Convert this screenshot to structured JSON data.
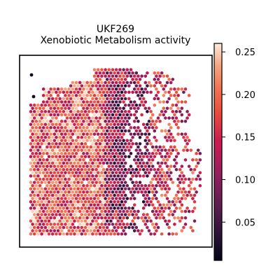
{
  "chart_data": {
    "type": "scatter",
    "title": "UKF269",
    "subtitle": "Xenobiotic Metabolism activity",
    "xlabel": "",
    "ylabel": "",
    "grid": false,
    "legend": "none",
    "marker": "hexagon",
    "colormap": "rocket",
    "colorbar": {
      "orientation": "vertical",
      "position": "right",
      "range": [
        0.005,
        0.26
      ],
      "ticks": [
        0.05,
        0.1,
        0.15,
        0.2,
        0.25
      ],
      "tick_labels": [
        "0.05",
        "0.10",
        "0.15",
        "0.20",
        "0.25"
      ]
    },
    "series": [
      {
        "values_note": "",
        "points": []
      }
    ],
    "colors": {
      "low": "#03051a",
      "mid": "#cb1b4f",
      "high": "#faebdd"
    }
  }
}
